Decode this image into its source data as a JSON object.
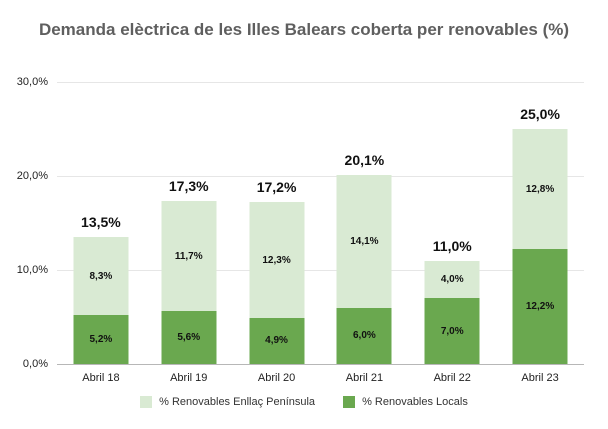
{
  "chart_data": {
    "type": "bar",
    "stacked": true,
    "title": "Demanda elèctrica de les Illes Balears coberta per renovables (%)",
    "categories": [
      "Abril 18",
      "Abril 19",
      "Abril 20",
      "Abril 21",
      "Abril 22",
      "Abril 23"
    ],
    "series": [
      {
        "name": "% Renovables Enllaç Península",
        "color": "#d9ead3",
        "values": [
          8.3,
          11.7,
          12.3,
          14.1,
          4.0,
          12.8
        ],
        "value_labels": [
          "8,3%",
          "11,7%",
          "12,3%",
          "14,1%",
          "4,0%",
          "12,8%"
        ]
      },
      {
        "name": "% Renovables Locals",
        "color": "#6aa84f",
        "values": [
          5.2,
          5.6,
          4.9,
          6.0,
          7.0,
          12.2
        ],
        "value_labels": [
          "5,2%",
          "5,6%",
          "4,9%",
          "6,0%",
          "7,0%",
          "12,2%"
        ]
      }
    ],
    "stack_bottom_to_top": [
      "% Renovables Locals",
      "% Renovables Enllaç Península"
    ],
    "totals": [
      13.5,
      17.3,
      17.2,
      20.1,
      11.0,
      25.0
    ],
    "total_labels": [
      "13,5%",
      "17,3%",
      "17,2%",
      "20,1%",
      "11,0%",
      "25,0%"
    ],
    "xlabel": "",
    "ylabel": "",
    "y_axis": {
      "min": 0,
      "max": 30,
      "tick_step": 10,
      "ticks": [
        {
          "value": 0,
          "label": "0,0%"
        },
        {
          "value": 10,
          "label": "10,0%"
        },
        {
          "value": 20,
          "label": "20,0%"
        },
        {
          "value": 30,
          "label": "30,0%"
        }
      ]
    },
    "grid": {
      "horizontal": true,
      "vertical": false
    },
    "legend_position": "bottom"
  },
  "style": {
    "background": "#ffffff",
    "title_color": "#5f5f5f",
    "axis_text_color": "#222222",
    "data_label_color": "#111111",
    "gridline_color": "#e6e6e6",
    "baseline_color": "#b7b7b7"
  }
}
